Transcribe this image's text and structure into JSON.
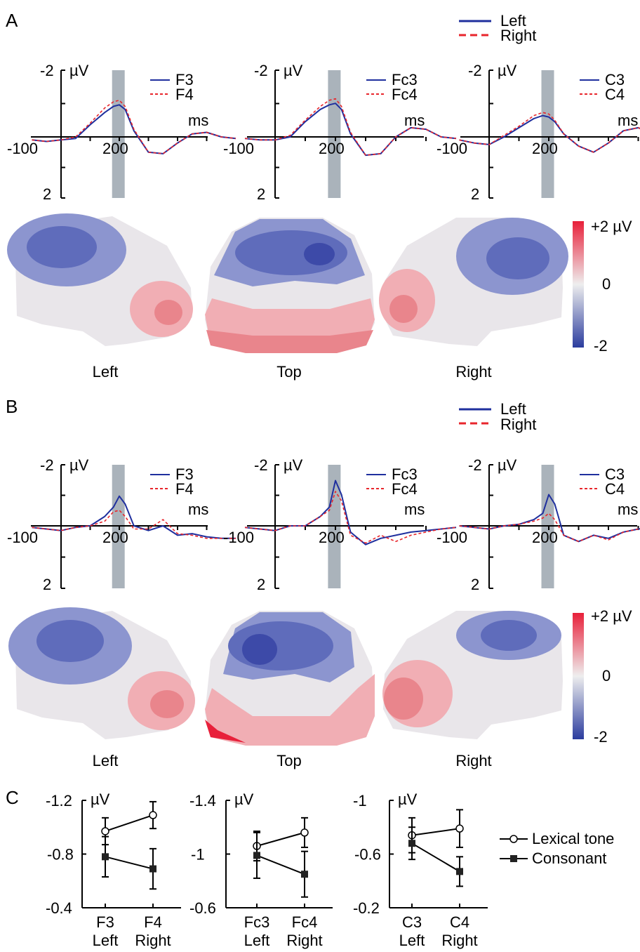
{
  "colors": {
    "left_series": "#1f2f9e",
    "right_series": "#e8262c",
    "highlight_window": "#aab3bb",
    "map_negative": "#2b3c9e",
    "map_zero": "#eeeeee",
    "map_positive": "#e8203a"
  },
  "panels": [
    {
      "letter": "A",
      "legend": {
        "left": "Left",
        "right": "Right"
      },
      "erp_plots": [
        {
          "ytop": "-2",
          "ybottom": "2",
          "unit": "µV",
          "xunit": "ms",
          "xleft": "-100",
          "xtick": "200",
          "left_electrode": "F3",
          "right_electrode": "F4"
        },
        {
          "ytop": "-2",
          "ybottom": "2",
          "unit": "µV",
          "xunit": "ms",
          "xleft": "-100",
          "xtick": "200",
          "left_electrode": "Fc3",
          "right_electrode": "Fc4"
        },
        {
          "ytop": "-2",
          "ybottom": "2",
          "unit": "µV",
          "xunit": "ms",
          "xleft": "-100",
          "xtick": "200",
          "left_electrode": "C3",
          "right_electrode": "C4"
        }
      ],
      "maps": {
        "labels": [
          "Left",
          "Top",
          "Right"
        ],
        "scale_top": "+2 µV",
        "scale_mid": "0",
        "scale_bottom": "-2"
      }
    },
    {
      "letter": "B",
      "legend": {
        "left": "Left",
        "right": "Right"
      },
      "erp_plots": [
        {
          "ytop": "-2",
          "ybottom": "2",
          "unit": "µV",
          "xunit": "ms",
          "xleft": "-100",
          "xtick": "200",
          "left_electrode": "F3",
          "right_electrode": "F4"
        },
        {
          "ytop": "-2",
          "ybottom": "2",
          "unit": "µV",
          "xunit": "ms",
          "xleft": "-100",
          "xtick": "200",
          "left_electrode": "Fc3",
          "right_electrode": "Fc4"
        },
        {
          "ytop": "-2",
          "ybottom": "2",
          "unit": "µV",
          "xunit": "ms",
          "xleft": "-100",
          "xtick": "200",
          "left_electrode": "C3",
          "right_electrode": "C4"
        }
      ],
      "maps": {
        "labels": [
          "Left",
          "Top",
          "Right"
        ],
        "scale_top": "+2 µV",
        "scale_mid": "0",
        "scale_bottom": "-2"
      }
    }
  ],
  "panel_c": {
    "letter": "C",
    "legend": {
      "tone": "Lexical tone",
      "consonant": "Consonant"
    }
  },
  "chart_data": [
    {
      "type": "line",
      "panel": "A",
      "x_unit": "ms",
      "y_unit": "µV",
      "ylim": [
        2,
        -2
      ],
      "xlim": [
        -100,
        700
      ],
      "highlight_window_ms": [
        180,
        240
      ],
      "plots": [
        {
          "electrodes": [
            "F3",
            "F4"
          ],
          "x": [
            -100,
            -50,
            0,
            50,
            100,
            150,
            180,
            200,
            220,
            250,
            300,
            350,
            400,
            450,
            500,
            550,
            600
          ],
          "series": [
            {
              "name": "F3",
              "values": [
                0.1,
                0.15,
                0.1,
                0.05,
                -0.4,
                -0.8,
                -1.0,
                -1.05,
                -0.9,
                -0.2,
                0.5,
                0.55,
                0.2,
                -0.1,
                -0.15,
                0.0,
                0.05
              ]
            },
            {
              "name": "F4",
              "values": [
                0.1,
                0.15,
                0.1,
                0.0,
                -0.45,
                -0.95,
                -1.15,
                -1.2,
                -1.0,
                -0.25,
                0.5,
                0.55,
                0.2,
                -0.1,
                -0.15,
                0.0,
                0.05
              ]
            }
          ]
        },
        {
          "electrodes": [
            "Fc3",
            "Fc4"
          ],
          "x": [
            -100,
            -50,
            0,
            50,
            100,
            150,
            180,
            200,
            220,
            250,
            300,
            350,
            400,
            450,
            500,
            550,
            600
          ],
          "series": [
            {
              "name": "Fc3",
              "values": [
                0.05,
                0.1,
                0.1,
                0.0,
                -0.5,
                -0.9,
                -1.05,
                -1.1,
                -0.9,
                -0.1,
                0.6,
                0.55,
                0.0,
                -0.3,
                -0.25,
                0.0,
                0.05
              ]
            },
            {
              "name": "Fc4",
              "values": [
                0.05,
                0.1,
                0.1,
                -0.05,
                -0.55,
                -1.0,
                -1.2,
                -1.25,
                -1.0,
                -0.15,
                0.6,
                0.55,
                0.0,
                -0.3,
                -0.25,
                0.0,
                0.05
              ]
            }
          ]
        },
        {
          "electrodes": [
            "C3",
            "C4"
          ],
          "x": [
            -100,
            -50,
            0,
            50,
            100,
            150,
            180,
            200,
            220,
            250,
            300,
            350,
            400,
            450,
            500,
            550,
            600
          ],
          "series": [
            {
              "name": "C3",
              "values": [
                0.1,
                0.2,
                0.25,
                0.0,
                -0.3,
                -0.6,
                -0.7,
                -0.65,
                -0.5,
                -0.1,
                0.3,
                0.5,
                0.2,
                -0.2,
                -0.3,
                -0.1,
                0.0
              ]
            },
            {
              "name": "C4",
              "values": [
                0.1,
                0.2,
                0.25,
                -0.05,
                -0.35,
                -0.7,
                -0.8,
                -0.75,
                -0.55,
                -0.1,
                0.3,
                0.5,
                0.2,
                -0.2,
                -0.3,
                -0.1,
                0.0
              ]
            }
          ]
        }
      ]
    },
    {
      "type": "line",
      "panel": "B",
      "x_unit": "ms",
      "y_unit": "µV",
      "ylim": [
        2,
        -2
      ],
      "xlim": [
        -100,
        700
      ],
      "highlight_window_ms": [
        180,
        240
      ],
      "plots": [
        {
          "electrodes": [
            "F3",
            "F4"
          ],
          "x": [
            -100,
            -50,
            0,
            50,
            100,
            150,
            180,
            200,
            220,
            250,
            300,
            350,
            400,
            450,
            500,
            550,
            600
          ],
          "series": [
            {
              "name": "F3",
              "values": [
                0.05,
                0.1,
                0.15,
                0.05,
                0.0,
                -0.3,
                -0.6,
                -0.95,
                -0.7,
                0.0,
                0.15,
                0.0,
                0.3,
                0.25,
                0.35,
                0.4,
                0.4
              ]
            },
            {
              "name": "F4",
              "values": [
                0.05,
                0.1,
                0.15,
                0.05,
                0.0,
                -0.15,
                -0.45,
                -0.5,
                -0.3,
                0.1,
                0.1,
                -0.2,
                0.25,
                0.3,
                0.4,
                0.4,
                0.4
              ]
            }
          ]
        },
        {
          "electrodes": [
            "Fc3",
            "Fc4"
          ],
          "x": [
            -100,
            -50,
            0,
            50,
            100,
            150,
            180,
            200,
            220,
            250,
            300,
            350,
            400,
            450,
            500,
            550,
            600
          ],
          "series": [
            {
              "name": "Fc3",
              "values": [
                0.05,
                0.1,
                0.15,
                0.0,
                0.0,
                -0.3,
                -0.6,
                -1.45,
                -1.0,
                0.2,
                0.6,
                0.4,
                0.3,
                0.2,
                0.15,
                0.1,
                0.05
              ]
            },
            {
              "name": "Fc4",
              "values": [
                0.05,
                0.1,
                0.15,
                0.0,
                0.0,
                -0.3,
                -0.5,
                -1.1,
                -0.8,
                0.3,
                0.55,
                0.3,
                0.5,
                0.3,
                0.2,
                0.1,
                0.05
              ]
            }
          ]
        },
        {
          "electrodes": [
            "C3",
            "C4"
          ],
          "x": [
            -100,
            -50,
            0,
            50,
            100,
            150,
            180,
            200,
            220,
            250,
            300,
            350,
            400,
            450,
            500,
            550,
            600
          ],
          "series": [
            {
              "name": "C3",
              "values": [
                0.0,
                0.05,
                0.1,
                0.0,
                -0.05,
                -0.2,
                -0.4,
                -1.0,
                -0.7,
                0.3,
                0.5,
                0.3,
                0.4,
                0.2,
                0.1,
                0.05,
                0.0
              ]
            },
            {
              "name": "C4",
              "values": [
                0.0,
                0.05,
                0.1,
                0.0,
                -0.05,
                -0.15,
                -0.25,
                -0.4,
                -0.2,
                0.3,
                0.5,
                0.3,
                0.45,
                0.2,
                0.1,
                0.05,
                0.0
              ]
            }
          ]
        }
      ]
    },
    {
      "type": "line",
      "panel": "C",
      "y_unit": "µV",
      "plots": [
        {
          "ytop": "-1.2",
          "ymid": "-0.8",
          "ybottom": "-0.4",
          "ylim": [
            -1.2,
            -0.4
          ],
          "categories": [
            [
              "F3",
              "Left"
            ],
            [
              "F4",
              "Right"
            ]
          ],
          "series": [
            {
              "name": "Lexical tone",
              "values": [
                -0.97,
                -1.09
              ],
              "errors": [
                0.1,
                0.1
              ]
            },
            {
              "name": "Consonant",
              "values": [
                -0.78,
                -0.69
              ],
              "errors": [
                0.15,
                0.15
              ]
            }
          ]
        },
        {
          "ytop": "-1.4",
          "ymid": "-1",
          "ybottom": "-0.6",
          "ylim": [
            -1.4,
            -0.6
          ],
          "categories": [
            [
              "Fc3",
              "Left"
            ],
            [
              "Fc4",
              "Right"
            ]
          ],
          "series": [
            {
              "name": "Lexical tone",
              "values": [
                -1.06,
                -1.16
              ],
              "errors": [
                0.11,
                0.11
              ]
            },
            {
              "name": "Consonant",
              "values": [
                -0.99,
                -0.85
              ],
              "errors": [
                0.17,
                0.17
              ]
            }
          ]
        },
        {
          "ytop": "-1",
          "ymid": "-0.6",
          "ybottom": "-0.2",
          "ylim": [
            -1.0,
            -0.2
          ],
          "categories": [
            [
              "C3",
              "Left"
            ],
            [
              "C4",
              "Right"
            ]
          ],
          "series": [
            {
              "name": "Lexical tone",
              "values": [
                -0.74,
                -0.79
              ],
              "errors": [
                0.13,
                0.14
              ]
            },
            {
              "name": "Consonant",
              "values": [
                -0.68,
                -0.47
              ],
              "errors": [
                0.12,
                0.11
              ]
            }
          ]
        }
      ]
    }
  ]
}
